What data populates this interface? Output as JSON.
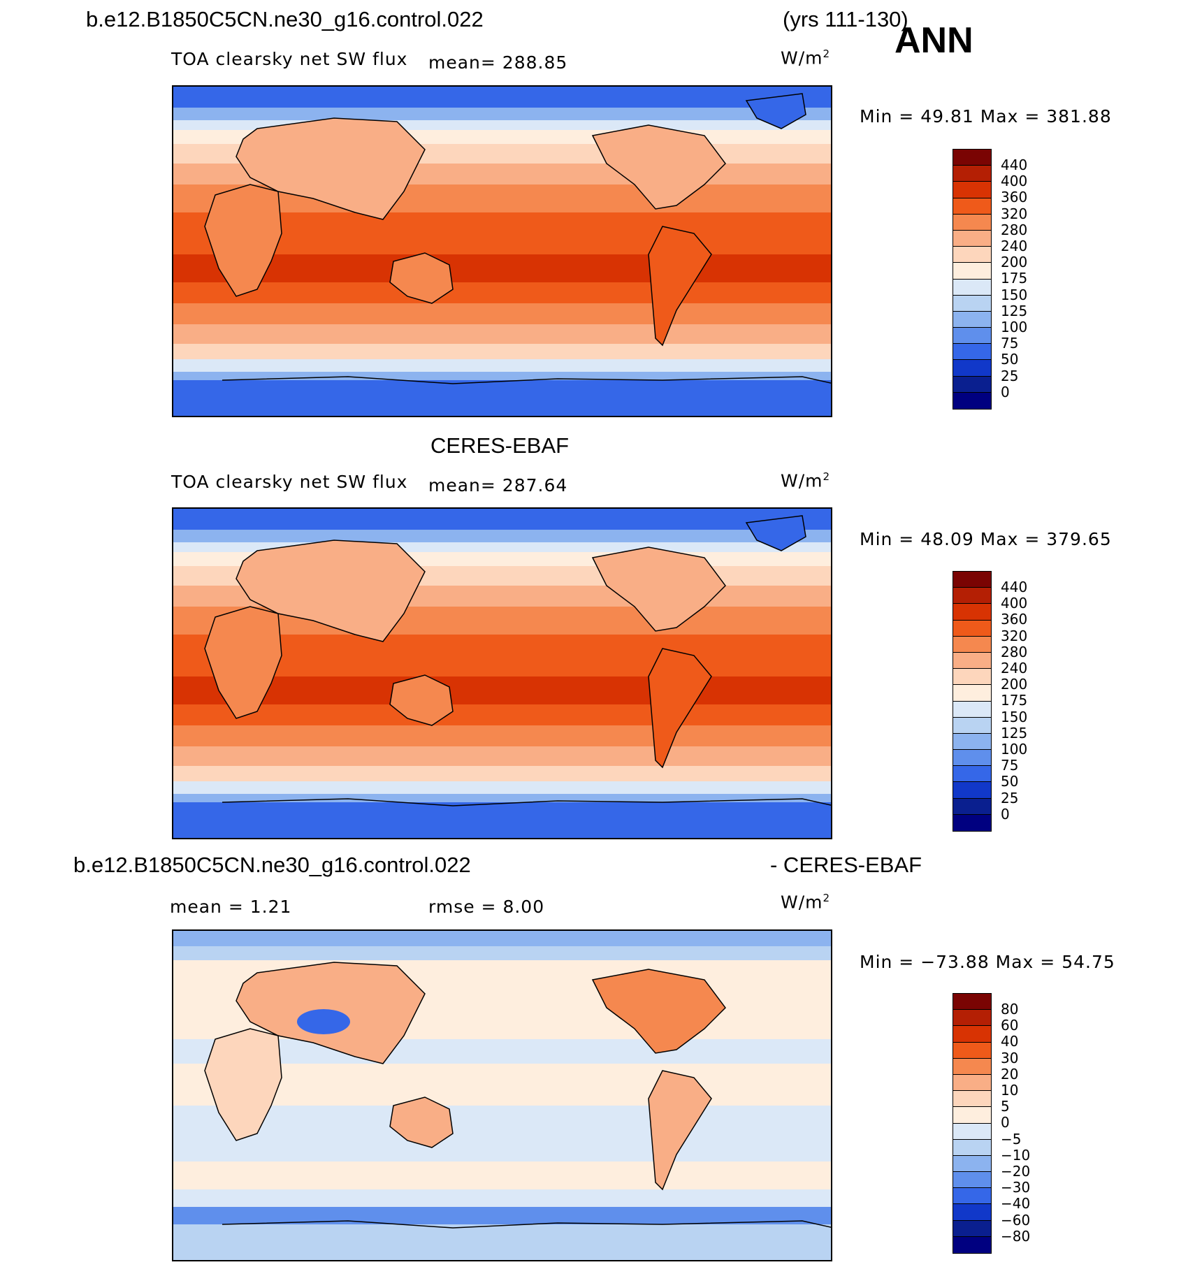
{
  "figure": {
    "case_name": "b.e12.B1850C5CN.ne30_g16.control.022",
    "years": "(yrs 111-130)",
    "season": "ANN",
    "obs_name": "CERES-EBAF"
  },
  "panels": [
    {
      "variable": "TOA clearsky net SW flux",
      "mean_text": "mean=  288.85",
      "units": "W/m",
      "units_sup": "2",
      "minmax": "Min  =    49.81  Max  =  381.88",
      "levels": [
        "440",
        "400",
        "360",
        "320",
        "280",
        "240",
        "200",
        "175",
        "150",
        "125",
        "100",
        "75",
        "50",
        "25",
        "0"
      ]
    },
    {
      "variable": "TOA clearsky net SW flux",
      "mean_text": "mean=  287.64",
      "units": "W/m",
      "units_sup": "2",
      "minmax": "Min  =    48.09  Max  =  379.65",
      "levels": [
        "440",
        "400",
        "360",
        "320",
        "280",
        "240",
        "200",
        "175",
        "150",
        "125",
        "100",
        "75",
        "50",
        "25",
        "0"
      ]
    },
    {
      "diff_left": "b.e12.B1850C5CN.ne30_g16.control.022",
      "diff_right": "- CERES-EBAF",
      "mean_text": "mean  =     1.21",
      "rmse_text": "rmse  =     8.00",
      "units": "W/m",
      "units_sup": "2",
      "minmax": "Min  =  −73.88  Max  =    54.75",
      "levels": [
        "80",
        "60",
        "40",
        "30",
        "20",
        "10",
        "5",
        "0",
        "−5",
        "−10",
        "−20",
        "−30",
        "−40",
        "−60",
        "−80"
      ]
    }
  ],
  "colorbar_colors": [
    "#7a0403",
    "#b41f04",
    "#d83303",
    "#ef5a1a",
    "#f5884f",
    "#f9ae86",
    "#fdd6bc",
    "#feeede",
    "#dbe8f7",
    "#b9d3f2",
    "#8cb3ef",
    "#5f8fec",
    "#3567e8",
    "#1138c9",
    "#0a1f8f",
    "#000080"
  ]
}
